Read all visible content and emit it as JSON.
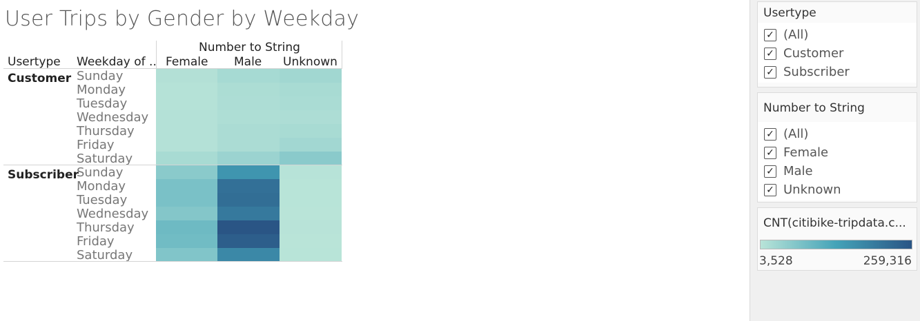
{
  "title": "User Trips by Gender by Weekday",
  "column_group_header": "Number to String",
  "row_headers": {
    "usertype": "Usertype",
    "weekday": "Weekday of .."
  },
  "columns": [
    "Female",
    "Male",
    "Unknown"
  ],
  "groups": [
    {
      "label": "Customer",
      "weekdays": [
        "Sunday",
        "Monday",
        "Tuesday",
        "Wednesday",
        "Thursday",
        "Friday",
        "Saturday"
      ]
    },
    {
      "label": "Subscriber",
      "weekdays": [
        "Sunday",
        "Monday",
        "Tuesday",
        "Wednesday",
        "Thursday",
        "Friday",
        "Saturday"
      ]
    }
  ],
  "filters": {
    "usertype": {
      "title": "Usertype",
      "items": [
        "(All)",
        "Customer",
        "Subscriber"
      ]
    },
    "gender": {
      "title": "Number to String",
      "items": [
        "(All)",
        "Female",
        "Male",
        "Unknown"
      ]
    }
  },
  "legend": {
    "title": "CNT(citibike-tripdata.c...",
    "min_label": "3,528",
    "max_label": "259,316"
  },
  "colors": {
    "low": "#b9e4d8",
    "mid": "#44a3b8",
    "high": "#2a5585"
  },
  "chart_data": {
    "type": "heatmap",
    "title": "User Trips by Gender by Weekday",
    "x_axis_title": "Number to String",
    "x_categories": [
      "Female",
      "Male",
      "Unknown"
    ],
    "row_dimensions": [
      "Usertype",
      "Weekday of .."
    ],
    "rows": [
      {
        "usertype": "Customer",
        "weekday": "Sunday",
        "values": [
          10500,
          24000,
          30000
        ]
      },
      {
        "usertype": "Customer",
        "weekday": "Monday",
        "values": [
          8000,
          18000,
          22000
        ]
      },
      {
        "usertype": "Customer",
        "weekday": "Tuesday",
        "values": [
          7500,
          17000,
          20000
        ]
      },
      {
        "usertype": "Customer",
        "weekday": "Wednesday",
        "values": [
          8500,
          16000,
          17000
        ]
      },
      {
        "usertype": "Customer",
        "weekday": "Thursday",
        "values": [
          9500,
          19000,
          22000
        ]
      },
      {
        "usertype": "Customer",
        "weekday": "Friday",
        "values": [
          9500,
          19000,
          29000
        ]
      },
      {
        "usertype": "Customer",
        "weekday": "Saturday",
        "values": [
          22000,
          36000,
          55000
        ]
      },
      {
        "usertype": "Subscriber",
        "weekday": "Sunday",
        "values": [
          55000,
          155000,
          5500
        ]
      },
      {
        "usertype": "Subscriber",
        "weekday": "Monday",
        "values": [
          72000,
          215000,
          4500
        ]
      },
      {
        "usertype": "Subscriber",
        "weekday": "Tuesday",
        "values": [
          72000,
          218000,
          4200
        ]
      },
      {
        "usertype": "Subscriber",
        "weekday": "Wednesday",
        "values": [
          62000,
          200000,
          4000
        ]
      },
      {
        "usertype": "Subscriber",
        "weekday": "Thursday",
        "values": [
          86000,
          259316,
          4800
        ]
      },
      {
        "usertype": "Subscriber",
        "weekday": "Friday",
        "values": [
          82000,
          245000,
          3528
        ]
      },
      {
        "usertype": "Subscriber",
        "weekday": "Saturday",
        "values": [
          65000,
          175000,
          4200
        ]
      }
    ],
    "color_range": [
      3528,
      259316
    ],
    "legend_title": "CNT(citibike-tripdata.c..."
  }
}
